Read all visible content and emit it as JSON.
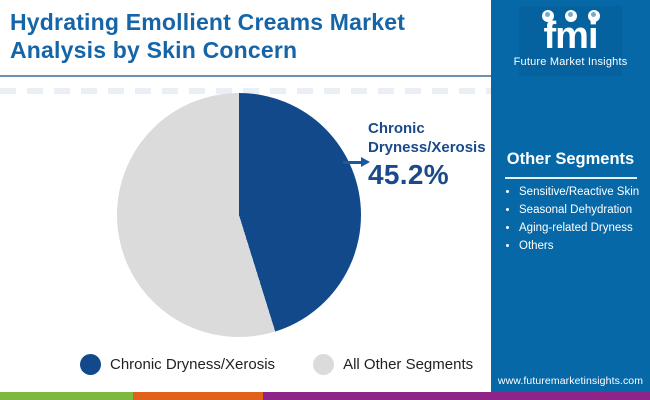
{
  "header": {
    "title": "Hydrating Emollient Creams Market Analysis by Skin Concern"
  },
  "logo": {
    "text": "fmi",
    "tagline": "Future Market Insights"
  },
  "sidebar": {
    "heading": "Other Segments",
    "items": [
      "Sensitive/Reactive Skin",
      "Seasonal Dehydration",
      "Aging-related Dryness",
      "Others"
    ],
    "website": "www.futuremarketinsights.com"
  },
  "chart_data": {
    "type": "pie",
    "title": "Hydrating Emollient Creams Market Analysis by Skin Concern",
    "slices": [
      {
        "label": "Chronic Dryness/Xerosis",
        "value": 45.2,
        "color": "#11498b"
      },
      {
        "label": "All Other Segments",
        "value": 54.8,
        "color": "#dbdbdb"
      }
    ],
    "start_angle_deg": 0,
    "direction": "clockwise",
    "callout": {
      "label": "Chronic Dryness/Xerosis",
      "value_label": "45.2%"
    },
    "legend": [
      "Chronic Dryness/Xerosis",
      "All Other Segments"
    ],
    "legend_position": "bottom"
  },
  "colors": {
    "title_blue": "#1565a8",
    "sidebar_blue": "#0768a8",
    "pie_blue": "#11498b",
    "pie_gray": "#dbdbdb",
    "divider": "#6a91b0",
    "callout_text": "#1a4a8a",
    "arrow": "#1a5ba0"
  },
  "footer_bar": {
    "colors": [
      "#7db843",
      "#e0611c",
      "#8e2487"
    ]
  }
}
